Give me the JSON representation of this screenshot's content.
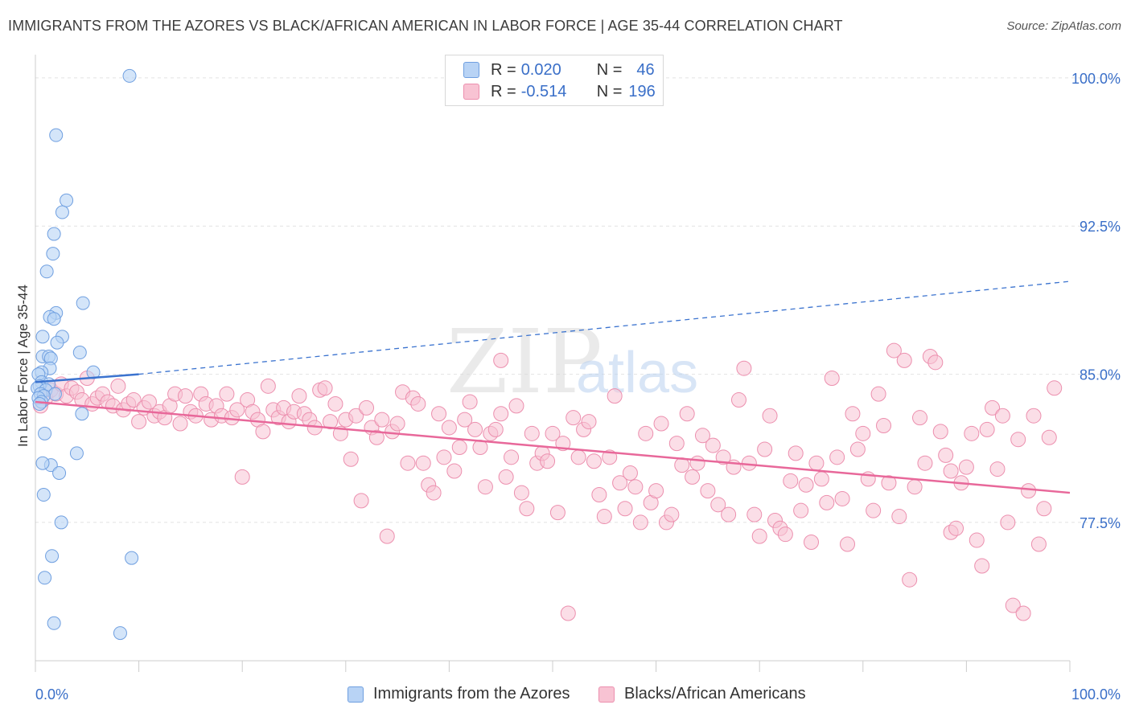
{
  "header": {
    "title": "IMMIGRANTS FROM THE AZORES VS BLACK/AFRICAN AMERICAN IN LABOR FORCE | AGE 35-44 CORRELATION CHART",
    "source": "Source: ZipAtlas.com"
  },
  "watermark": {
    "zip": "ZIP",
    "atlas": "atlas"
  },
  "legend_stats": [
    {
      "r_label": "R =",
      "r_value": "0.020",
      "n_label": "N =",
      "n_value": "46"
    },
    {
      "r_label": "R =",
      "r_value": "-0.514",
      "n_label": "N =",
      "n_value": "196"
    }
  ],
  "colors": {
    "blue_fill": "#b8d3f5",
    "blue_stroke": "#6f9fe0",
    "blue_line": "#3b73cf",
    "pink_fill": "#f8c3d3",
    "pink_stroke": "#ec8fae",
    "pink_line": "#e8689a",
    "axis_label": "#3a6fc8",
    "grid": "#e2e2e2"
  },
  "chart_data": {
    "type": "scatter",
    "title": "IMMIGRANTS FROM THE AZORES VS BLACK/AFRICAN AMERICAN IN LABOR FORCE | AGE 35-44 CORRELATION CHART",
    "xlabel": "",
    "ylabel": "In Labor Force | Age 35-44",
    "xlim": [
      0,
      100
    ],
    "ylim": [
      70.5,
      101.5
    ],
    "x_tick_labels": [
      {
        "value": 0,
        "label": "0.0%"
      },
      {
        "value": 100,
        "label": "100.0%"
      }
    ],
    "y_tick_labels": [
      {
        "value": 100,
        "label": "100.0%"
      },
      {
        "value": 92.5,
        "label": "92.5%"
      },
      {
        "value": 85,
        "label": "85.0%"
      },
      {
        "value": 77.5,
        "label": "77.5%"
      }
    ],
    "grid": "horizontal dashed",
    "legend_position": "top-center and bottom",
    "series": [
      {
        "name": "Immigrants from the Azores",
        "color": "#b8d3f5",
        "points": [
          [
            9.1,
            100.1
          ],
          [
            2.0,
            97.1
          ],
          [
            3.0,
            93.8
          ],
          [
            2.6,
            93.2
          ],
          [
            1.8,
            92.1
          ],
          [
            1.7,
            91.1
          ],
          [
            1.1,
            90.2
          ],
          [
            4.6,
            88.6
          ],
          [
            2.0,
            88.1
          ],
          [
            1.4,
            87.9
          ],
          [
            1.8,
            87.8
          ],
          [
            0.7,
            86.9
          ],
          [
            2.6,
            86.9
          ],
          [
            2.1,
            86.6
          ],
          [
            4.3,
            86.1
          ],
          [
            0.7,
            85.9
          ],
          [
            1.3,
            85.9
          ],
          [
            1.5,
            85.8
          ],
          [
            1.4,
            85.3
          ],
          [
            0.6,
            85.1
          ],
          [
            0.3,
            85.0
          ],
          [
            5.6,
            85.1
          ],
          [
            0.6,
            84.6
          ],
          [
            1.3,
            84.5
          ],
          [
            0.4,
            84.4
          ],
          [
            0.2,
            84.3
          ],
          [
            1.0,
            84.2
          ],
          [
            1.9,
            84.0
          ],
          [
            0.5,
            84.0
          ],
          [
            0.8,
            83.9
          ],
          [
            0.3,
            83.8
          ],
          [
            0.6,
            83.6
          ],
          [
            0.4,
            83.5
          ],
          [
            4.5,
            83.0
          ],
          [
            0.9,
            82.0
          ],
          [
            4.0,
            81.0
          ],
          [
            1.5,
            80.4
          ],
          [
            0.7,
            80.5
          ],
          [
            2.3,
            80.0
          ],
          [
            0.8,
            78.9
          ],
          [
            2.5,
            77.5
          ],
          [
            1.6,
            75.8
          ],
          [
            9.3,
            75.7
          ],
          [
            0.9,
            74.7
          ],
          [
            1.8,
            72.4
          ],
          [
            8.2,
            71.9
          ]
        ]
      },
      {
        "name": "Blacks/African Americans",
        "color": "#f8c3d3",
        "points": [
          [
            0.5,
            83.4
          ],
          [
            1.0,
            83.8
          ],
          [
            1.5,
            84.2
          ],
          [
            2.0,
            84.0
          ],
          [
            2.5,
            84.5
          ],
          [
            3.0,
            83.9
          ],
          [
            3.5,
            84.3
          ],
          [
            4.0,
            84.1
          ],
          [
            4.5,
            83.7
          ],
          [
            5.0,
            84.8
          ],
          [
            5.5,
            83.5
          ],
          [
            6.0,
            83.8
          ],
          [
            6.5,
            84.0
          ],
          [
            7.0,
            83.6
          ],
          [
            7.5,
            83.4
          ],
          [
            8.0,
            84.4
          ],
          [
            8.5,
            83.2
          ],
          [
            9.0,
            83.5
          ],
          [
            9.5,
            83.7
          ],
          [
            10.0,
            82.6
          ],
          [
            10.5,
            83.3
          ],
          [
            11.0,
            83.6
          ],
          [
            11.5,
            82.9
          ],
          [
            12.0,
            83.1
          ],
          [
            12.5,
            82.8
          ],
          [
            13.0,
            83.4
          ],
          [
            13.5,
            84.0
          ],
          [
            14.0,
            82.5
          ],
          [
            14.5,
            83.9
          ],
          [
            15.0,
            83.1
          ],
          [
            15.5,
            82.9
          ],
          [
            16.0,
            84.0
          ],
          [
            16.5,
            83.5
          ],
          [
            17.0,
            82.7
          ],
          [
            17.5,
            83.4
          ],
          [
            18.0,
            82.9
          ],
          [
            18.5,
            84.0
          ],
          [
            19.0,
            82.8
          ],
          [
            19.5,
            83.2
          ],
          [
            20.0,
            79.8
          ],
          [
            20.5,
            83.7
          ],
          [
            21.0,
            83.1
          ],
          [
            21.5,
            82.7
          ],
          [
            22.0,
            82.1
          ],
          [
            22.5,
            84.4
          ],
          [
            23.0,
            83.2
          ],
          [
            23.5,
            82.8
          ],
          [
            24.0,
            83.3
          ],
          [
            24.5,
            82.6
          ],
          [
            25.0,
            83.1
          ],
          [
            25.5,
            83.9
          ],
          [
            26.0,
            83.0
          ],
          [
            26.5,
            82.7
          ],
          [
            27.0,
            82.3
          ],
          [
            27.5,
            84.2
          ],
          [
            28.0,
            84.3
          ],
          [
            28.5,
            82.6
          ],
          [
            29.0,
            83.5
          ],
          [
            29.5,
            82.0
          ],
          [
            30.0,
            82.7
          ],
          [
            30.5,
            80.7
          ],
          [
            31.0,
            82.9
          ],
          [
            31.5,
            78.6
          ],
          [
            32.0,
            83.3
          ],
          [
            32.5,
            82.3
          ],
          [
            33.0,
            81.8
          ],
          [
            33.5,
            82.7
          ],
          [
            34.0,
            76.8
          ],
          [
            34.5,
            82.1
          ],
          [
            35.0,
            82.5
          ],
          [
            35.5,
            84.1
          ],
          [
            36.0,
            80.5
          ],
          [
            36.5,
            83.8
          ],
          [
            37.0,
            83.5
          ],
          [
            37.5,
            80.5
          ],
          [
            38.0,
            79.4
          ],
          [
            38.5,
            79.0
          ],
          [
            39.0,
            83.0
          ],
          [
            39.5,
            80.8
          ],
          [
            40.0,
            82.3
          ],
          [
            40.5,
            80.1
          ],
          [
            41.0,
            81.3
          ],
          [
            41.5,
            82.7
          ],
          [
            42.0,
            83.6
          ],
          [
            42.5,
            82.2
          ],
          [
            43.0,
            81.3
          ],
          [
            43.5,
            79.3
          ],
          [
            44.0,
            82.0
          ],
          [
            44.5,
            82.2
          ],
          [
            45.0,
            85.7
          ],
          [
            45.5,
            79.8
          ],
          [
            46.0,
            80.8
          ],
          [
            46.5,
            83.4
          ],
          [
            47.0,
            79.0
          ],
          [
            47.5,
            78.2
          ],
          [
            48.0,
            82.0
          ],
          [
            48.5,
            80.5
          ],
          [
            49.0,
            81.0
          ],
          [
            49.5,
            80.6
          ],
          [
            50.0,
            82.0
          ],
          [
            50.5,
            78.0
          ],
          [
            51.0,
            81.5
          ],
          [
            51.5,
            72.9
          ],
          [
            52.0,
            82.8
          ],
          [
            52.5,
            80.8
          ],
          [
            53.0,
            82.2
          ],
          [
            53.5,
            82.6
          ],
          [
            54.0,
            80.6
          ],
          [
            54.5,
            78.9
          ],
          [
            55.0,
            77.8
          ],
          [
            55.5,
            80.8
          ],
          [
            56.0,
            83.9
          ],
          [
            56.5,
            79.5
          ],
          [
            57.0,
            78.2
          ],
          [
            57.5,
            80.0
          ],
          [
            58.0,
            79.3
          ],
          [
            58.5,
            77.5
          ],
          [
            59.0,
            82.0
          ],
          [
            59.5,
            78.5
          ],
          [
            60.0,
            79.1
          ],
          [
            60.5,
            82.5
          ],
          [
            61.0,
            77.5
          ],
          [
            61.5,
            77.9
          ],
          [
            62.0,
            81.5
          ],
          [
            62.5,
            80.4
          ],
          [
            63.0,
            83.0
          ],
          [
            63.5,
            79.8
          ],
          [
            64.0,
            80.5
          ],
          [
            64.5,
            81.9
          ],
          [
            65.0,
            79.1
          ],
          [
            65.5,
            81.4
          ],
          [
            66.0,
            78.4
          ],
          [
            66.5,
            80.8
          ],
          [
            67.0,
            77.9
          ],
          [
            67.5,
            80.3
          ],
          [
            68.0,
            83.7
          ],
          [
            68.5,
            85.3
          ],
          [
            69.0,
            80.5
          ],
          [
            69.5,
            77.9
          ],
          [
            70.0,
            76.8
          ],
          [
            70.5,
            81.2
          ],
          [
            71.0,
            82.9
          ],
          [
            71.5,
            77.6
          ],
          [
            72.0,
            77.2
          ],
          [
            72.5,
            76.9
          ],
          [
            73.0,
            79.6
          ],
          [
            73.5,
            81.0
          ],
          [
            74.0,
            78.1
          ],
          [
            74.5,
            79.4
          ],
          [
            75.0,
            76.5
          ],
          [
            75.5,
            80.5
          ],
          [
            76.0,
            79.7
          ],
          [
            76.5,
            78.5
          ],
          [
            77.0,
            84.8
          ],
          [
            77.5,
            80.8
          ],
          [
            78.0,
            78.7
          ],
          [
            78.5,
            76.4
          ],
          [
            79.0,
            83.0
          ],
          [
            79.5,
            81.2
          ],
          [
            80.0,
            82.0
          ],
          [
            80.5,
            79.7
          ],
          [
            81.0,
            78.1
          ],
          [
            81.5,
            84.0
          ],
          [
            82.0,
            82.4
          ],
          [
            82.5,
            79.5
          ],
          [
            83.0,
            86.2
          ],
          [
            83.5,
            77.8
          ],
          [
            84.0,
            85.7
          ],
          [
            84.5,
            74.6
          ],
          [
            85.0,
            79.3
          ],
          [
            85.5,
            82.8
          ],
          [
            86.0,
            80.5
          ],
          [
            86.5,
            85.9
          ],
          [
            87.0,
            85.6
          ],
          [
            87.5,
            82.1
          ],
          [
            88.0,
            80.9
          ],
          [
            88.5,
            77.0
          ],
          [
            89.0,
            77.2
          ],
          [
            89.5,
            79.5
          ],
          [
            90.0,
            80.3
          ],
          [
            90.5,
            82.0
          ],
          [
            91.0,
            76.6
          ],
          [
            91.5,
            75.3
          ],
          [
            92.0,
            82.2
          ],
          [
            92.5,
            83.3
          ],
          [
            93.0,
            80.2
          ],
          [
            93.5,
            82.9
          ],
          [
            94.0,
            77.5
          ],
          [
            94.5,
            73.3
          ],
          [
            95.0,
            81.7
          ],
          [
            95.5,
            72.9
          ],
          [
            96.0,
            79.1
          ],
          [
            96.5,
            82.9
          ],
          [
            97.0,
            76.4
          ],
          [
            97.5,
            78.2
          ],
          [
            98.0,
            81.8
          ],
          [
            98.5,
            84.3
          ],
          [
            88.5,
            80.1
          ],
          [
            45.0,
            83.0
          ]
        ]
      }
    ],
    "trend_lines": [
      {
        "series": "Immigrants from the Azores",
        "solid": [
          [
            0,
            84.6
          ],
          [
            10,
            85.0
          ]
        ],
        "dashed": [
          [
            10,
            85.0
          ],
          [
            100,
            89.7
          ]
        ]
      },
      {
        "series": "Blacks/African Americans",
        "solid": [
          [
            0,
            83.6
          ],
          [
            100,
            79.0
          ]
        ]
      }
    ]
  },
  "legend_bottom": [
    {
      "label": "Immigrants from the Azores"
    },
    {
      "label": "Blacks/African Americans"
    }
  ]
}
